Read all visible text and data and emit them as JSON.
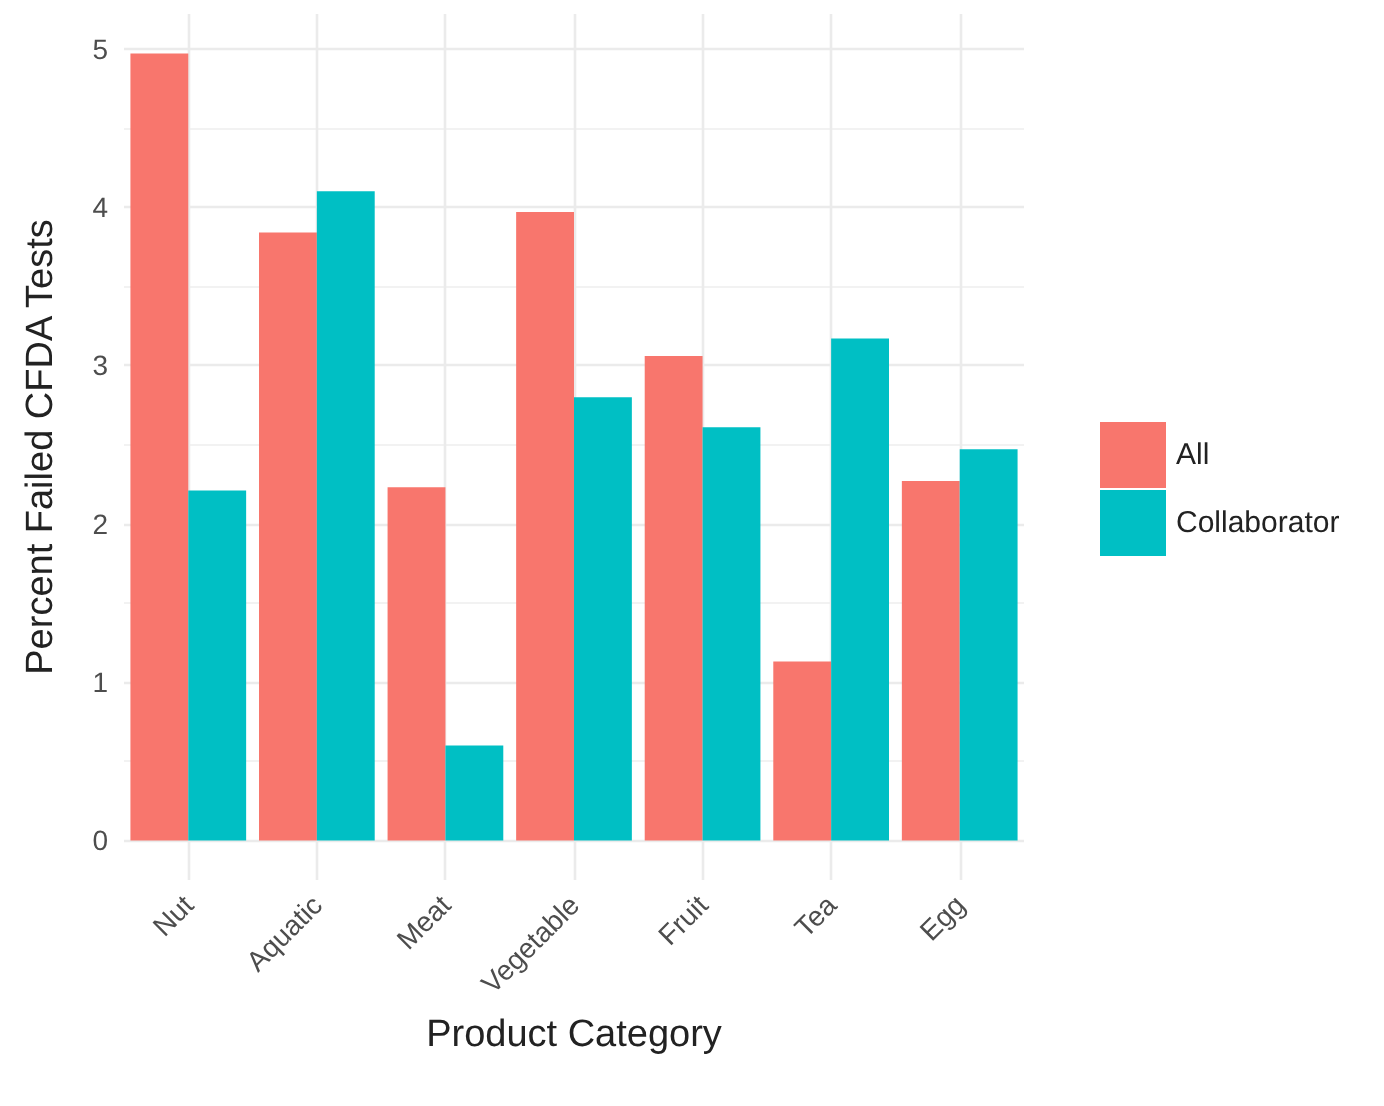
{
  "chart_data": {
    "type": "bar",
    "xlabel": "Product Category",
    "ylabel": "Percent Failed CFDA Tests",
    "categories": [
      "Nut",
      "Aquatic",
      "Meat",
      "Vegetable",
      "Fruit",
      "Tea",
      "Egg"
    ],
    "series": [
      {
        "name": "All",
        "color": "#f8766d",
        "values": [
          4.97,
          3.84,
          2.23,
          3.97,
          3.06,
          1.13,
          2.27
        ]
      },
      {
        "name": "Collaborator",
        "color": "#00bfc4",
        "values": [
          2.21,
          4.1,
          0.6,
          2.8,
          2.61,
          3.17,
          2.47
        ]
      }
    ],
    "ylim": [
      -0.25,
      5.22
    ],
    "yticks": [
      0,
      1,
      2,
      3,
      4,
      5
    ],
    "grid": true,
    "legend": "right"
  }
}
